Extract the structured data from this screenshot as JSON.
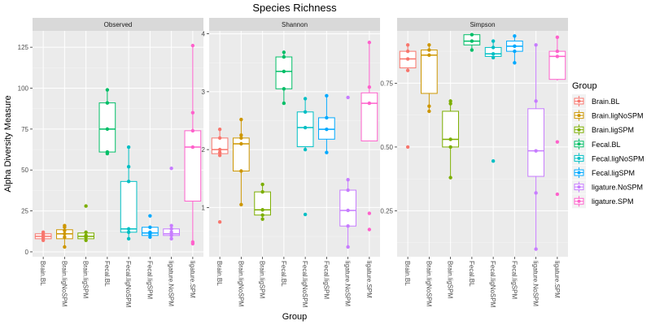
{
  "chart_data": {
    "type": "box",
    "title": "Species Richness",
    "xlabel": "Group",
    "ylabel": "Alpha Diversity Measure",
    "legend": {
      "title": "Group",
      "position": "right",
      "entries": [
        "Brain.BL",
        "Brain.ligNoSPM",
        "Brain.ligSPM",
        "Fecal.BL",
        "Fecal.ligNoSPM",
        "Fecal.ligSPM",
        "ligature.NoSPM",
        "ligature.SPM"
      ]
    },
    "groups": [
      "Brain.BL",
      "Brain.ligNoSPM",
      "Brain.ligSPM",
      "Fecal.BL",
      "Fecal.ligNoSPM",
      "Fecal.ligSPM",
      "ligature.NoSPM",
      "ligature.SPM"
    ],
    "colors": [
      "#F8766D",
      "#CD9600",
      "#7CAE00",
      "#00BE67",
      "#00BFC4",
      "#00A9FF",
      "#C77CFF",
      "#FF61CC"
    ],
    "grid": true,
    "panels": [
      {
        "name": "Observed",
        "ylim": [
          -3,
          135
        ],
        "yticks": [
          0,
          25,
          50,
          75,
          100,
          125
        ],
        "ytick_labels": [
          "0",
          "25",
          "50",
          "75",
          "100",
          "125"
        ],
        "boxes": [
          {
            "min": 7,
            "q1": 8,
            "median": 9.5,
            "q3": 11,
            "max": 12
          },
          {
            "min": 3,
            "q1": 8,
            "median": 11,
            "q3": 13.5,
            "max": 16
          },
          {
            "min": 7,
            "q1": 8,
            "median": 9.5,
            "q3": 11.5,
            "max": 12
          },
          {
            "min": 60,
            "q1": 61,
            "median": 75,
            "q3": 91,
            "max": 99
          },
          {
            "min": 8,
            "q1": 12,
            "median": 14,
            "q3": 43,
            "max": 64
          },
          {
            "min": 9,
            "q1": 10,
            "median": 11.5,
            "q3": 15,
            "max": 15
          },
          {
            "min": 8,
            "q1": 10,
            "median": 11,
            "q3": 14,
            "max": 16
          },
          {
            "min": 5,
            "q1": 31,
            "median": 64,
            "q3": 74,
            "max": 126
          }
        ],
        "points": [
          [
            7,
            8,
            9,
            10,
            11,
            12
          ],
          [
            3,
            9,
            11,
            13,
            15,
            16
          ],
          [
            7,
            9,
            10,
            12,
            28
          ],
          [
            60,
            61,
            75,
            91,
            99
          ],
          [
            8,
            12,
            14,
            43,
            52,
            64
          ],
          [
            9,
            11,
            12,
            15,
            22
          ],
          [
            8,
            10,
            12,
            14,
            16,
            51
          ],
          [
            5,
            6,
            64,
            74,
            85,
            126
          ]
        ]
      },
      {
        "name": "Shannon",
        "ylim": [
          0.15,
          4.05
        ],
        "yticks": [
          1,
          2,
          3,
          4
        ],
        "ytick_labels": [
          "1",
          "2",
          "3",
          "4"
        ],
        "boxes": [
          {
            "min": 1.9,
            "q1": 1.93,
            "median": 2.0,
            "q3": 2.2,
            "max": 2.35
          },
          {
            "min": 1.05,
            "q1": 1.63,
            "median": 2.1,
            "q3": 2.2,
            "max": 2.52
          },
          {
            "min": 0.8,
            "q1": 0.87,
            "median": 0.96,
            "q3": 1.27,
            "max": 1.4
          },
          {
            "min": 2.8,
            "q1": 3.05,
            "median": 3.35,
            "q3": 3.6,
            "max": 3.68
          },
          {
            "min": 2.0,
            "q1": 2.05,
            "median": 2.38,
            "q3": 2.65,
            "max": 2.88
          },
          {
            "min": 1.95,
            "q1": 2.18,
            "median": 2.35,
            "q3": 2.55,
            "max": 2.93
          },
          {
            "min": 0.32,
            "q1": 0.68,
            "median": 0.95,
            "q3": 1.3,
            "max": 1.48
          },
          {
            "min": 2.15,
            "q1": 2.15,
            "median": 2.8,
            "q3": 2.98,
            "max": 3.85
          }
        ],
        "points": [
          [
            0.75,
            1.9,
            1.95,
            2.0,
            2.2,
            2.35
          ],
          [
            1.05,
            1.63,
            2.1,
            2.2,
            2.25,
            2.52
          ],
          [
            0.8,
            0.87,
            0.96,
            1.27,
            1.4
          ],
          [
            2.8,
            3.05,
            3.35,
            3.6,
            3.68
          ],
          [
            0.88,
            2.0,
            2.38,
            2.65,
            2.88
          ],
          [
            1.95,
            2.35,
            2.55,
            2.93
          ],
          [
            0.32,
            0.68,
            0.95,
            1.3,
            1.48,
            2.9
          ],
          [
            0.62,
            0.9,
            2.8,
            3.08,
            3.85
          ]
        ]
      },
      {
        "name": "Simpson",
        "ylim": [
          0.07,
          0.955
        ],
        "yticks": [
          0.25,
          0.5,
          0.75
        ],
        "ytick_labels": [
          "0.25",
          "0.50",
          "0.75"
        ],
        "boxes": [
          {
            "min": 0.8,
            "q1": 0.81,
            "median": 0.845,
            "q3": 0.875,
            "max": 0.9
          },
          {
            "min": 0.64,
            "q1": 0.71,
            "median": 0.86,
            "q3": 0.88,
            "max": 0.9
          },
          {
            "min": 0.38,
            "q1": 0.5,
            "median": 0.53,
            "q3": 0.64,
            "max": 0.67
          },
          {
            "min": 0.88,
            "q1": 0.9,
            "median": 0.915,
            "q3": 0.94,
            "max": 0.94
          },
          {
            "min": 0.85,
            "q1": 0.855,
            "median": 0.865,
            "q3": 0.89,
            "max": 0.915
          },
          {
            "min": 0.83,
            "q1": 0.875,
            "median": 0.895,
            "q3": 0.915,
            "max": 0.935
          },
          {
            "min": 0.1,
            "q1": 0.385,
            "median": 0.485,
            "q3": 0.65,
            "max": 0.9
          },
          {
            "min": 0.76,
            "q1": 0.765,
            "median": 0.855,
            "q3": 0.875,
            "max": 0.93
          }
        ],
        "points": [
          [
            0.5,
            0.8,
            0.845,
            0.875,
            0.9
          ],
          [
            0.64,
            0.66,
            0.86,
            0.88,
            0.9
          ],
          [
            0.38,
            0.5,
            0.53,
            0.67,
            0.68
          ],
          [
            0.88,
            0.915,
            0.94
          ],
          [
            0.445,
            0.85,
            0.865,
            0.89,
            0.915
          ],
          [
            0.83,
            0.875,
            0.895,
            0.935
          ],
          [
            0.1,
            0.32,
            0.485,
            0.68,
            0.9
          ],
          [
            0.315,
            0.52,
            0.855,
            0.875,
            0.93
          ]
        ]
      }
    ]
  }
}
